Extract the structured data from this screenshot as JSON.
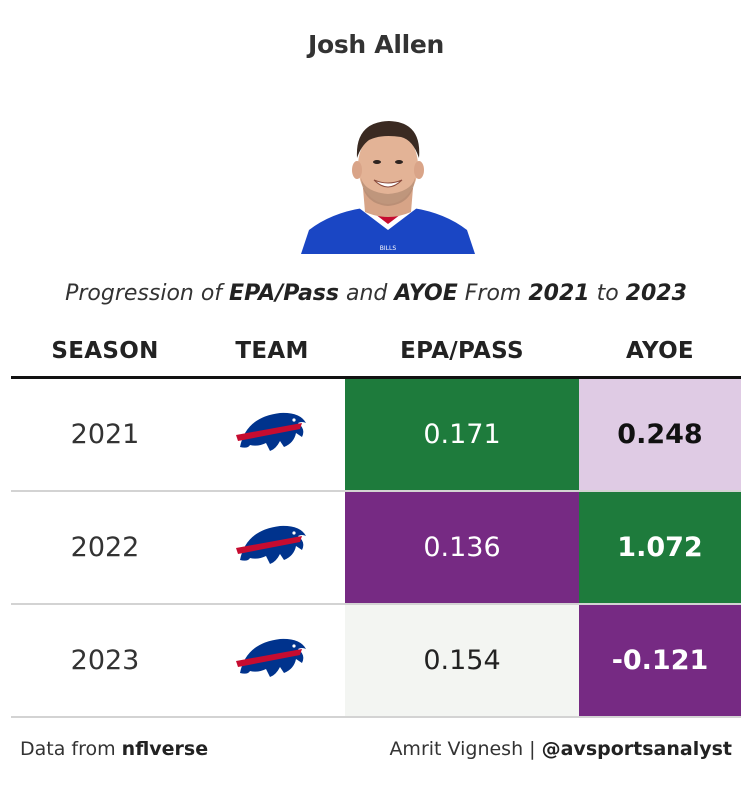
{
  "title": "Josh Allen",
  "subtitle": {
    "parts": [
      {
        "text": "Progression of ",
        "bold": false
      },
      {
        "text": "EPA/Pass",
        "bold": true
      },
      {
        "text": " and ",
        "bold": false
      },
      {
        "text": "AYOE",
        "bold": true
      },
      {
        "text": " From ",
        "bold": false
      },
      {
        "text": "2021",
        "bold": true
      },
      {
        "text": " to ",
        "bold": false
      },
      {
        "text": "2023",
        "bold": true
      }
    ]
  },
  "headshot": {
    "icon": "player-headshot",
    "jersey_color": "#1a46c4",
    "jersey_text": "BILLS"
  },
  "chart_data": {
    "type": "table",
    "columns": [
      "SEASON",
      "TEAM",
      "EPA/PASS",
      "AYOE"
    ],
    "rows": [
      {
        "season": "2021",
        "team_icon": "bills-logo-icon",
        "epa_pass": "0.171",
        "ayoe": "0.248",
        "epa_bg": "#1e7b3c",
        "epa_fg": "#ffffff",
        "ayoe_bg": "#dfcbe4",
        "ayoe_fg": "#111111"
      },
      {
        "season": "2022",
        "team_icon": "bills-logo-icon",
        "epa_pass": "0.136",
        "ayoe": "1.072",
        "epa_bg": "#762a83",
        "epa_fg": "#ffffff",
        "ayoe_bg": "#1e7b3c",
        "ayoe_fg": "#ffffff"
      },
      {
        "season": "2023",
        "team_icon": "bills-logo-icon",
        "epa_pass": "0.154",
        "ayoe": "-0.121",
        "epa_bg": "#f3f5f2",
        "epa_fg": "#222222",
        "ayoe_bg": "#762a83",
        "ayoe_fg": "#ffffff"
      }
    ]
  },
  "colors": {
    "bills_blue": "#00338d",
    "bills_red": "#c60c30"
  },
  "footer": {
    "left_prefix": "Data from ",
    "left_bold": "nflverse",
    "right_prefix": "Amrit Vignesh | ",
    "right_bold": "@avsportsanalyst"
  }
}
